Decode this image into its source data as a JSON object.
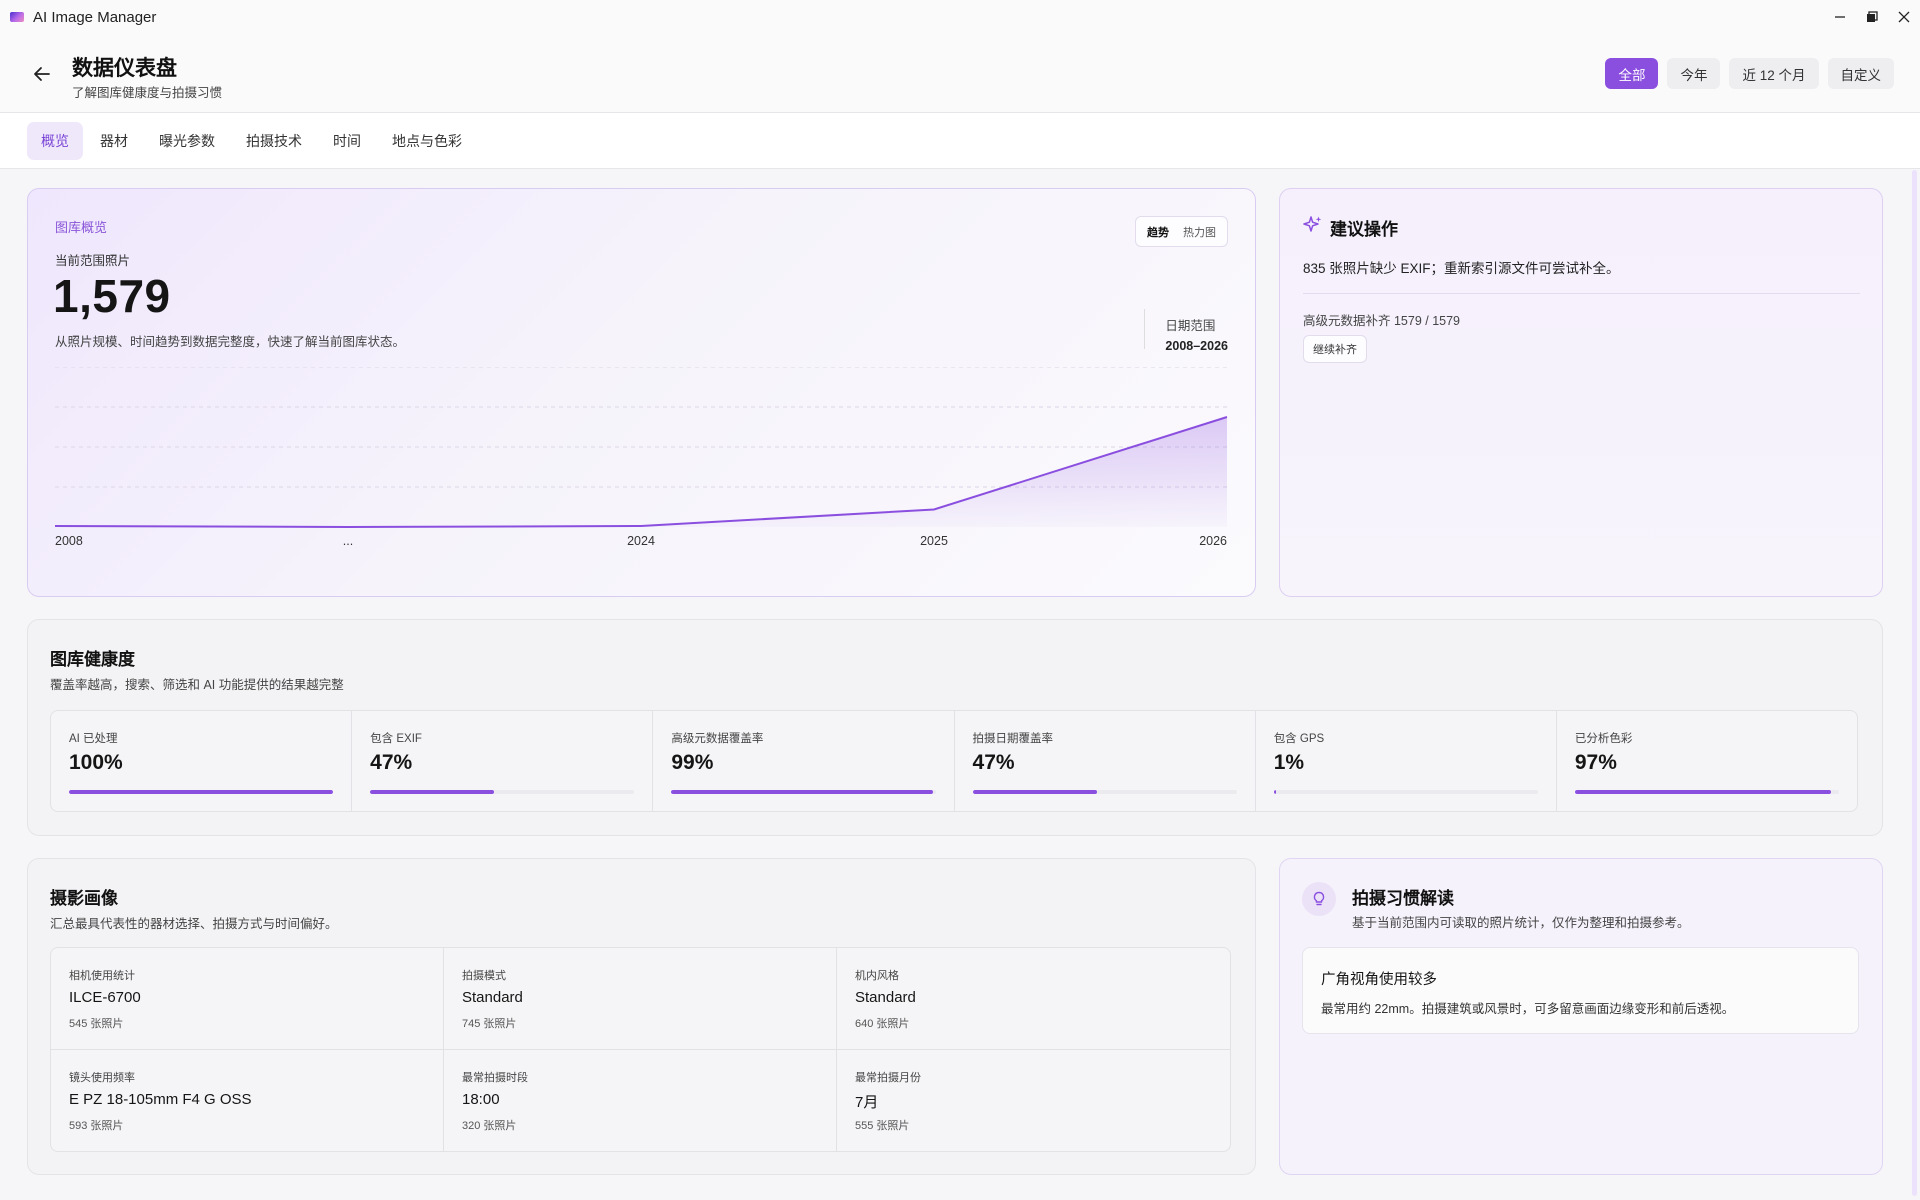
{
  "app": {
    "title": "AI Image Manager"
  },
  "header": {
    "title": "数据仪表盘",
    "subtitle": "了解图库健康度与拍摄习惯",
    "ranges": [
      "全部",
      "今年",
      "近 12 个月",
      "自定义"
    ],
    "active_range": "全部"
  },
  "tabs": [
    {
      "label": "概览",
      "active": true
    },
    {
      "label": "器材"
    },
    {
      "label": "曝光参数"
    },
    {
      "label": "拍摄技术"
    },
    {
      "label": "时间"
    },
    {
      "label": "地点与色彩"
    }
  ],
  "overview": {
    "label": "图库概览",
    "count_label": "当前范围照片",
    "count": "1,579",
    "description": "从照片规模、时间趋势到数据完整度，快速了解当前图库状态。",
    "toggle": [
      "趋势",
      "热力图"
    ],
    "date_range_label": "日期范围",
    "date_range_value": "2008–2026"
  },
  "chart_data": {
    "type": "area",
    "categories": [
      "2008",
      "...",
      "2024",
      "2025",
      "2026"
    ],
    "values": [
      2,
      0,
      2,
      35,
      220
    ],
    "title": "",
    "xlabel": "",
    "ylabel": "",
    "ylim": [
      0,
      320
    ],
    "grid": true,
    "legend": "none",
    "color": "#8b4fe0"
  },
  "suggestion": {
    "title": "建议操作",
    "message": "835 张照片缺少 EXIF；重新索引源文件可尝试补全。",
    "meta": "高级元数据补齐 1579 / 1579",
    "button": "继续补齐"
  },
  "health": {
    "title": "图库健康度",
    "subtitle": "覆盖率越高，搜索、筛选和 AI 功能提供的结果越完整",
    "metrics": [
      {
        "label": "AI 已处理",
        "value": "100%",
        "fraction": 1.0
      },
      {
        "label": "包含 EXIF",
        "value": "47%",
        "fraction": 0.47
      },
      {
        "label": "高级元数据覆盖率",
        "value": "99%",
        "fraction": 0.99
      },
      {
        "label": "拍摄日期覆盖率",
        "value": "47%",
        "fraction": 0.47
      },
      {
        "label": "包含 GPS",
        "value": "1%",
        "fraction": 0.01
      },
      {
        "label": "已分析色彩",
        "value": "97%",
        "fraction": 0.97
      }
    ]
  },
  "portrait": {
    "title": "摄影画像",
    "subtitle": "汇总最具代表性的器材选择、拍摄方式与时间偏好。",
    "cells": [
      {
        "label": "相机使用统计",
        "value": "ILCE-6700",
        "count": "545 张照片"
      },
      {
        "label": "拍摄模式",
        "value": "Standard",
        "count": "745 张照片"
      },
      {
        "label": "机内风格",
        "value": "Standard",
        "count": "640 张照片"
      },
      {
        "label": "镜头使用频率",
        "value": "E PZ 18-105mm F4 G OSS",
        "count": "593 张照片"
      },
      {
        "label": "最常拍摄时段",
        "value": "18:00",
        "count": "320 张照片"
      },
      {
        "label": "最常拍摄月份",
        "value": "7月",
        "count": "555 张照片"
      }
    ]
  },
  "habit": {
    "title": "拍摄习惯解读",
    "subtitle": "基于当前范围内可读取的照片统计，仅作为整理和拍摄参考。",
    "card_title": "广角视角使用较多",
    "card_text": "最常用约 22mm。拍摄建筑或风景时，可多留意画面边缘变形和前后透视。"
  }
}
